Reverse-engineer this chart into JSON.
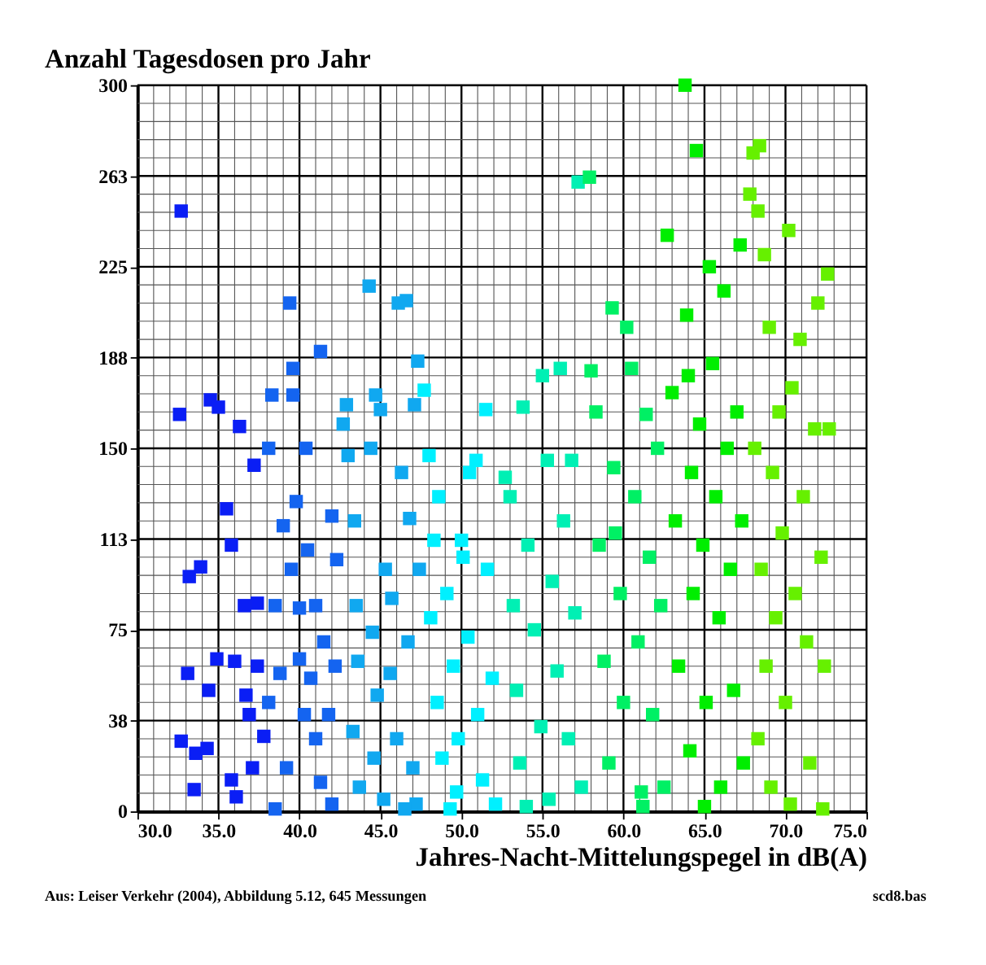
{
  "chart_data": {
    "type": "scatter",
    "title": "Anzahl Tagesdosen pro Jahr",
    "xlabel": "Jahres-Nacht-Mittelungspegel in dB(A)",
    "annotations": [
      "Aus: Leiser Verkehr (2004), Abbildung 5.12, 645 Messungen",
      "scd8.bas"
    ],
    "xlim": [
      30,
      75
    ],
    "ylim": [
      0,
      300
    ],
    "xticks": [
      {
        "value": 30,
        "label": "30.0"
      },
      {
        "value": 35,
        "label": "35.0"
      },
      {
        "value": 40,
        "label": "40.0"
      },
      {
        "value": 45,
        "label": "45.0"
      },
      {
        "value": 50,
        "label": "50.0"
      },
      {
        "value": 55,
        "label": "55.0"
      },
      {
        "value": 60,
        "label": "60.0"
      },
      {
        "value": 65,
        "label": "65.0"
      },
      {
        "value": 70,
        "label": "70.0"
      },
      {
        "value": 75,
        "label": "75.0"
      }
    ],
    "yticks": [
      0,
      {
        "value": 37.5,
        "label": "38"
      },
      75,
      {
        "value": 112.5,
        "label": "113"
      },
      150,
      {
        "value": 187.5,
        "label": "188"
      },
      225,
      {
        "value": 262.5,
        "label": "263"
      },
      300
    ],
    "grid": true,
    "marker": "square",
    "series": [
      {
        "color": "#0a1ef5",
        "x": [
          32.7,
          32.6,
          33.2,
          33.9,
          32.7,
          33.1,
          33.5,
          33.6,
          34.3,
          34.5,
          35.0,
          34.4,
          34.9,
          35.5,
          35.8,
          36.0,
          35.8,
          36.1,
          36.3,
          36.6,
          36.7,
          36.9,
          37.1,
          37.2,
          37.4,
          37.4,
          37.8
        ],
        "values": [
          248,
          164,
          97,
          101,
          29,
          57,
          9,
          24,
          26,
          170,
          167,
          50,
          63,
          125,
          110,
          62,
          13,
          6,
          159,
          85,
          48,
          40,
          18,
          143,
          86,
          60,
          31
        ]
      },
      {
        "color": "#1464f0",
        "x": [
          38.1,
          38.3,
          38.1,
          38.5,
          38.8,
          39.0,
          39.4,
          39.6,
          39.6,
          39.8,
          39.5,
          40.0,
          40.0,
          40.3,
          40.5,
          40.7,
          41.0,
          41.3,
          41.0,
          41.3,
          41.5,
          41.8,
          42.0,
          42.3,
          42.2,
          42.0,
          38.5,
          39.2,
          40.4
        ],
        "values": [
          150,
          172,
          45,
          85,
          57,
          118,
          210,
          183,
          172,
          128,
          100,
          84,
          63,
          40,
          108,
          55,
          85,
          190,
          30,
          12,
          70,
          40,
          122,
          104,
          60,
          3,
          1,
          18,
          150
        ]
      },
      {
        "color": "#10a8f0",
        "x": [
          42.9,
          42.7,
          43.0,
          43.4,
          43.5,
          43.6,
          43.3,
          43.7,
          44.3,
          44.4,
          44.7,
          44.5,
          44.8,
          44.6,
          45.0,
          45.3,
          45.7,
          45.6,
          45.2,
          46.1,
          46.3,
          46.0,
          46.6,
          46.8,
          46.7,
          47.0,
          47.1,
          47.3,
          47.4,
          47.2,
          46.5
        ],
        "values": [
          168,
          160,
          147,
          120,
          85,
          62,
          33,
          10,
          217,
          150,
          172,
          74,
          48,
          22,
          166,
          100,
          88,
          57,
          5,
          210,
          140,
          30,
          211,
          121,
          70,
          18,
          168,
          186,
          100,
          3,
          1
        ]
      },
      {
        "color": "#00f0ff",
        "x": [
          47.7,
          48.0,
          48.3,
          48.1,
          48.5,
          48.8,
          49.1,
          49.5,
          49.8,
          49.7,
          50.1,
          50.5,
          50.4,
          50.9,
          51.0,
          51.3,
          51.5,
          51.6,
          51.9,
          52.1,
          50.0,
          49.3,
          48.6
        ],
        "values": [
          174,
          147,
          112,
          80,
          45,
          22,
          90,
          60,
          30,
          8,
          105,
          140,
          72,
          145,
          40,
          13,
          166,
          100,
          55,
          3,
          112,
          1,
          130
        ]
      },
      {
        "color": "#00f0b4",
        "x": [
          52.7,
          53.0,
          53.2,
          53.4,
          53.8,
          53.6,
          54.1,
          54.5,
          54.9,
          55.3,
          55.4,
          55.6,
          55.9,
          56.1,
          56.3,
          56.6,
          56.8,
          57.0,
          57.2,
          57.4,
          55.0,
          54.0
        ],
        "values": [
          138,
          130,
          85,
          50,
          167,
          20,
          110,
          75,
          35,
          145,
          5,
          95,
          58,
          183,
          120,
          30,
          145,
          82,
          260,
          10,
          180,
          2
        ]
      },
      {
        "color": "#00f064",
        "x": [
          57.9,
          58.0,
          58.3,
          58.5,
          58.8,
          59.1,
          59.3,
          59.4,
          59.8,
          60.0,
          60.2,
          60.5,
          60.7,
          60.9,
          61.1,
          61.4,
          61.6,
          61.8,
          62.1,
          62.3,
          62.5,
          61.2,
          59.5
        ],
        "values": [
          262,
          182,
          165,
          110,
          62,
          20,
          208,
          142,
          90,
          45,
          200,
          183,
          130,
          70,
          8,
          164,
          105,
          40,
          150,
          85,
          10,
          2,
          115
        ]
      },
      {
        "color": "#00ee00",
        "x": [
          62.7,
          63.0,
          63.2,
          63.4,
          63.8,
          63.9,
          64.0,
          64.2,
          64.3,
          64.1,
          64.5,
          64.7,
          64.9,
          65.1,
          65.3,
          65.5,
          65.7,
          65.9,
          66.0,
          66.2,
          66.4,
          66.6,
          66.8,
          67.0,
          67.2,
          67.3,
          67.4,
          65.0
        ],
        "values": [
          238,
          173,
          120,
          60,
          300,
          205,
          180,
          140,
          90,
          25,
          273,
          160,
          110,
          45,
          225,
          185,
          130,
          80,
          10,
          215,
          150,
          100,
          50,
          165,
          234,
          120,
          20,
          2
        ]
      },
      {
        "color": "#66f000",
        "x": [
          67.8,
          68.0,
          68.3,
          68.4,
          68.7,
          68.1,
          68.5,
          68.8,
          68.3,
          69.0,
          69.2,
          69.4,
          69.1,
          69.6,
          69.8,
          70.0,
          70.2,
          70.4,
          70.6,
          70.3,
          70.9,
          71.1,
          71.3,
          71.5,
          71.8,
          72.0,
          72.2,
          72.4,
          72.6,
          72.7,
          72.3
        ],
        "values": [
          255,
          272,
          248,
          275,
          230,
          150,
          100,
          60,
          30,
          200,
          140,
          80,
          10,
          165,
          115,
          45,
          240,
          175,
          90,
          3,
          195,
          130,
          70,
          20,
          158,
          210,
          105,
          60,
          222,
          158,
          1
        ]
      }
    ]
  }
}
